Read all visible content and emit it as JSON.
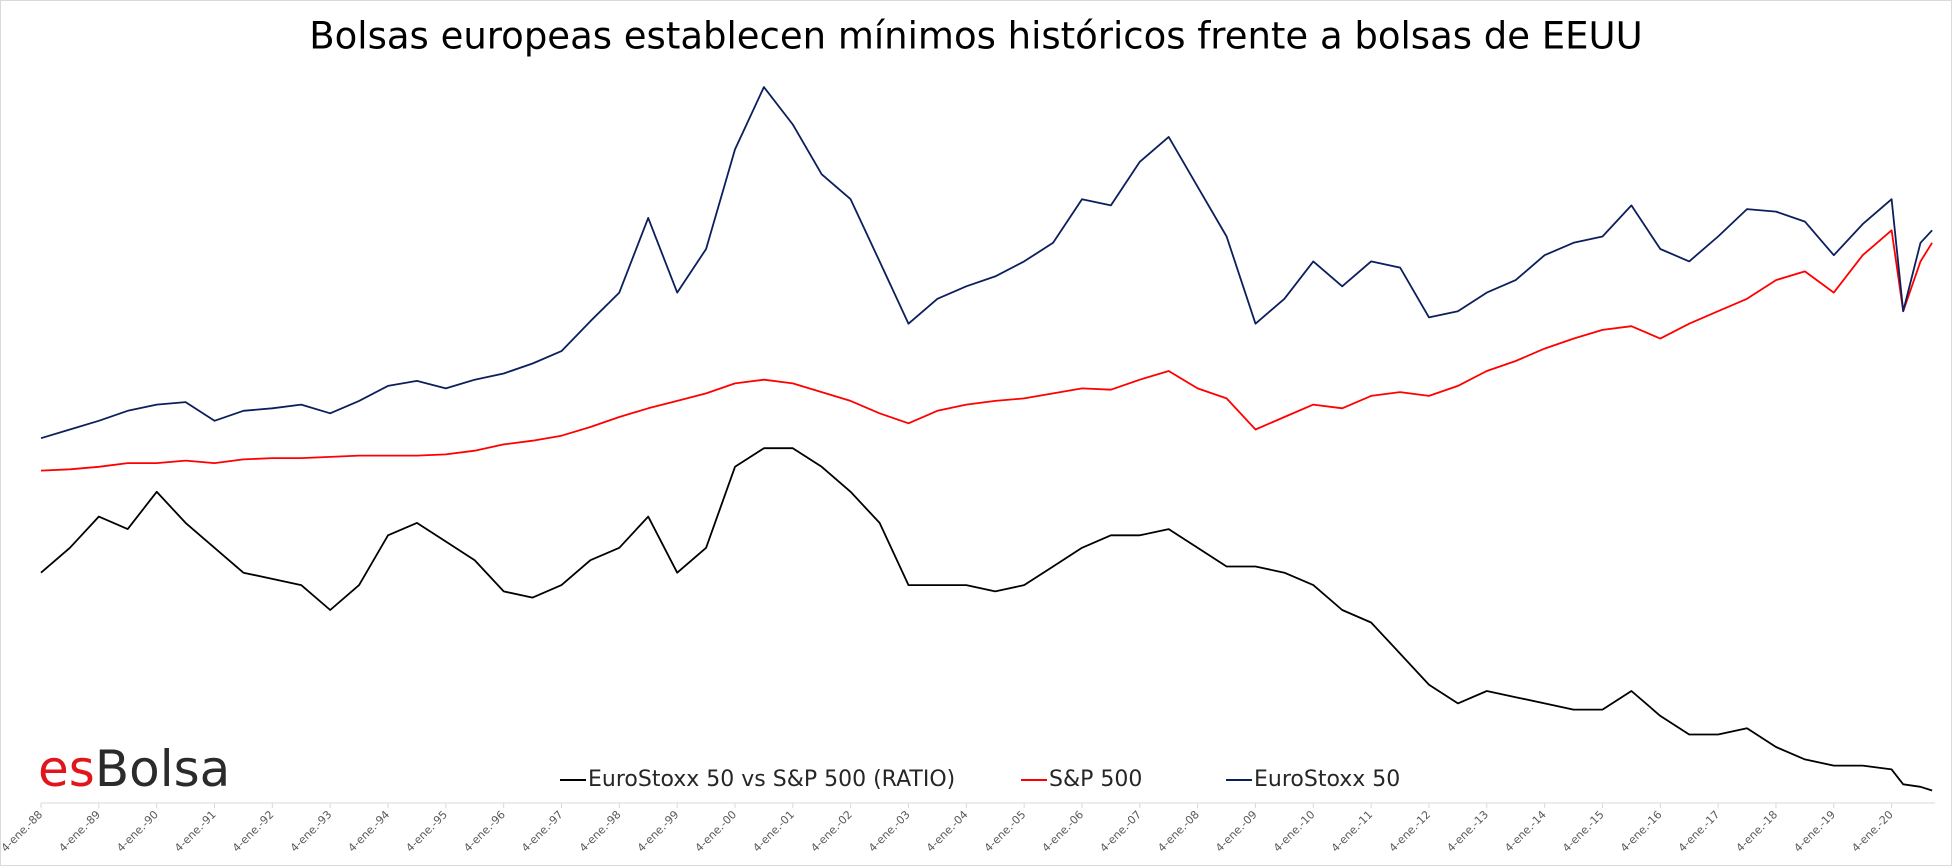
{
  "logo": {
    "prefix": "es",
    "name": "Bolsa"
  },
  "chart_data": {
    "type": "line",
    "title": "Bolsas europeas establecen mínimos históricos frente a bolsas de EEUU",
    "x": [
      1988,
      1988.5,
      1989,
      1989.5,
      1990,
      1990.5,
      1991,
      1991.5,
      1992,
      1992.5,
      1993,
      1993.5,
      1994,
      1994.5,
      1995,
      1995.5,
      1996,
      1996.5,
      1997,
      1997.5,
      1998,
      1998.5,
      1999,
      1999.5,
      2000,
      2000.5,
      2001,
      2001.5,
      2002,
      2002.5,
      2003,
      2003.5,
      2004,
      2004.5,
      2005,
      2005.5,
      2006,
      2006.5,
      2007,
      2007.5,
      2008,
      2008.5,
      2009,
      2009.5,
      2010,
      2010.5,
      2011,
      2011.5,
      2012,
      2012.5,
      2013,
      2013.5,
      2014,
      2014.5,
      2015,
      2015.5,
      2016,
      2016.5,
      2017,
      2017.5,
      2018,
      2018.5,
      2019,
      2019.5,
      2020,
      2020.2,
      2020.5,
      2020.7
    ],
    "series": [
      {
        "name": "EuroStoxx 50 vs S&P 500 (RATIO)",
        "color": "#000000",
        "values": [
          185,
          205,
          230,
          220,
          250,
          225,
          205,
          185,
          180,
          175,
          155,
          175,
          215,
          225,
          210,
          195,
          170,
          165,
          175,
          195,
          205,
          230,
          185,
          205,
          270,
          285,
          285,
          270,
          250,
          225,
          175,
          175,
          175,
          170,
          175,
          190,
          205,
          215,
          215,
          220,
          205,
          190,
          190,
          185,
          175,
          155,
          145,
          120,
          95,
          80,
          90,
          85,
          80,
          75,
          75,
          90,
          70,
          55,
          55,
          60,
          45,
          35,
          30,
          30,
          27,
          15,
          13,
          10
        ]
      },
      {
        "name": "S&P 500",
        "color": "#ff0000",
        "values": [
          267,
          268,
          270,
          273,
          273,
          275,
          273,
          276,
          277,
          277,
          278,
          279,
          279,
          279,
          280,
          283,
          288,
          291,
          295,
          302,
          310,
          317,
          323,
          329,
          337,
          340,
          337,
          330,
          323,
          313,
          305,
          315,
          320,
          323,
          325,
          329,
          333,
          332,
          340,
          347,
          333,
          325,
          300,
          310,
          320,
          317,
          327,
          330,
          327,
          335,
          347,
          355,
          365,
          373,
          380,
          383,
          373,
          385,
          395,
          405,
          420,
          427,
          410,
          440,
          460,
          395,
          435,
          450
        ]
      },
      {
        "name": "EuroStoxx 50",
        "color": "#0b1f5c",
        "values": [
          293,
          300,
          307,
          315,
          320,
          322,
          307,
          315,
          317,
          320,
          313,
          323,
          335,
          339,
          333,
          340,
          345,
          353,
          363,
          387,
          410,
          470,
          410,
          445,
          525,
          575,
          545,
          505,
          485,
          435,
          385,
          405,
          415,
          423,
          435,
          450,
          485,
          480,
          515,
          535,
          495,
          455,
          385,
          405,
          435,
          415,
          435,
          430,
          390,
          395,
          410,
          420,
          440,
          450,
          455,
          480,
          445,
          435,
          455,
          477,
          475,
          467,
          440,
          465,
          485,
          395,
          450,
          460
        ]
      }
    ],
    "xlim": [
      1988,
      2020.75
    ],
    "xticks": [
      {
        "value": 1988,
        "label": "4-ene.-88"
      },
      {
        "value": 1989,
        "label": "4-ene.-89"
      },
      {
        "value": 1990,
        "label": "4-ene.-90"
      },
      {
        "value": 1991,
        "label": "4-ene.-91"
      },
      {
        "value": 1992,
        "label": "4-ene.-92"
      },
      {
        "value": 1993,
        "label": "4-ene.-93"
      },
      {
        "value": 1994,
        "label": "4-ene.-94"
      },
      {
        "value": 1995,
        "label": "4-ene.-95"
      },
      {
        "value": 1996,
        "label": "4-ene.-96"
      },
      {
        "value": 1997,
        "label": "4-ene.-97"
      },
      {
        "value": 1998,
        "label": "4-ene.-98"
      },
      {
        "value": 1999,
        "label": "4-ene.-99"
      },
      {
        "value": 2000,
        "label": "4-ene.-00"
      },
      {
        "value": 2001,
        "label": "4-ene.-01"
      },
      {
        "value": 2002,
        "label": "4-ene.-02"
      },
      {
        "value": 2003,
        "label": "4-ene.-03"
      },
      {
        "value": 2004,
        "label": "4-ene.-04"
      },
      {
        "value": 2005,
        "label": "4-ene.-05"
      },
      {
        "value": 2006,
        "label": "4-ene.-06"
      },
      {
        "value": 2007,
        "label": "4-ene.-07"
      },
      {
        "value": 2008,
        "label": "4-ene.-08"
      },
      {
        "value": 2009,
        "label": "4-ene.-09"
      },
      {
        "value": 2010,
        "label": "4-ene.-10"
      },
      {
        "value": 2011,
        "label": "4-ene.-11"
      },
      {
        "value": 2012,
        "label": "4-ene.-12"
      },
      {
        "value": 2013,
        "label": "4-ene.-13"
      },
      {
        "value": 2014,
        "label": "4-ene.-14"
      },
      {
        "value": 2015,
        "label": "4-ene.-15"
      },
      {
        "value": 2016,
        "label": "4-ene.-16"
      },
      {
        "value": 2017,
        "label": "4-ene.-17"
      },
      {
        "value": 2018,
        "label": "4-ene.-18"
      },
      {
        "value": 2019,
        "label": "4-ene.-19"
      },
      {
        "value": 2020,
        "label": "4-ene.-20"
      }
    ],
    "ylim": [
      0,
      600
    ],
    "legend": "bottom"
  }
}
